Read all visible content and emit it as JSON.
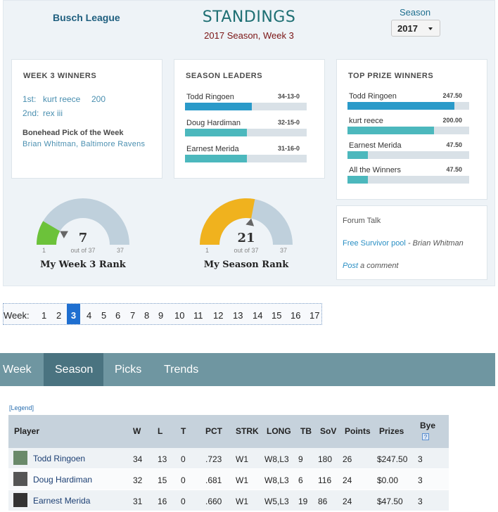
{
  "header": {
    "league_name": "Busch League",
    "title": "STANDINGS",
    "subtitle": "2017 Season, Week 3",
    "season_label": "Season",
    "season_value": "2017"
  },
  "week_winners": {
    "title": "WEEK 3 WINNERS",
    "rows": [
      {
        "place": "1st:",
        "name": "kurt reece",
        "score": "200"
      },
      {
        "place": "2nd:",
        "name": "rex iii",
        "score": ""
      }
    ],
    "bonehead_title": "Bonehead Pick of the Week",
    "bonehead_text": "Brian Whitman, Baltimore Ravens"
  },
  "season_leaders": {
    "title": "SEASON LEADERS",
    "items": [
      {
        "name": "Todd Ringoen",
        "value": "34-13-0",
        "fraction": 0.55,
        "color": "#2a9ac9"
      },
      {
        "name": "Doug Hardiman",
        "value": "32-15-0",
        "fraction": 0.51,
        "color": "#4cb8bd"
      },
      {
        "name": "Earnest Merida",
        "value": "31-16-0",
        "fraction": 0.51,
        "color": "#4cb8bd"
      }
    ]
  },
  "top_prize": {
    "title": "TOP PRIZE WINNERS",
    "items": [
      {
        "name": "Todd Ringoen",
        "value": "247.50",
        "fraction": 0.88,
        "color": "#2a9ac9"
      },
      {
        "name": "kurt reece",
        "value": "200.00",
        "fraction": 0.71,
        "color": "#4cb8bd"
      },
      {
        "name": "Earnest Merida",
        "value": "47.50",
        "fraction": 0.17,
        "color": "#4cb8bd"
      },
      {
        "name": "All the Winners",
        "value": "47.50",
        "fraction": 0.17,
        "color": "#4cb8bd"
      }
    ]
  },
  "gauges": [
    {
      "value": "7",
      "min": "1",
      "max": "37",
      "out_of": "out of 37",
      "title": "My Week 3 Rank",
      "fraction": 0.17,
      "color": "#6cc23a"
    },
    {
      "value": "21",
      "min": "1",
      "max": "37",
      "out_of": "out of 37",
      "title": "My Season Rank",
      "fraction": 0.56,
      "color": "#f0b21e"
    }
  ],
  "forum": {
    "title": "Forum Talk",
    "post_link": "Free Survivor pool",
    "post_author": "- Brian Whitman",
    "comment_link": "Post",
    "comment_text": "a comment"
  },
  "weeks": {
    "label": "Week:",
    "active": "3",
    "numbers": [
      "1",
      "2",
      "3",
      "4",
      "5",
      "6",
      "7",
      "8",
      "9",
      "10",
      "11",
      "12",
      "13",
      "14",
      "15",
      "16",
      "17"
    ]
  },
  "tabs": [
    "Week",
    "Season",
    "Picks",
    "Trends"
  ],
  "active_tab": "Season",
  "legend": "[Legend]",
  "table": {
    "headers": [
      "Player",
      "W",
      "L",
      "T",
      "PCT",
      "STRK",
      "LONG",
      "TB",
      "SoV",
      "Points",
      "Prizes",
      "Bye"
    ],
    "rows": [
      [
        "Todd Ringoen",
        "34",
        "13",
        "0",
        ".723",
        "W1",
        "W8,L3",
        "9",
        "180",
        "26",
        "$247.50",
        "3"
      ],
      [
        "Doug Hardiman",
        "32",
        "15",
        "0",
        ".681",
        "W1",
        "W8,L3",
        "6",
        "116",
        "24",
        "$0.00",
        "3"
      ],
      [
        "Earnest Merida",
        "31",
        "16",
        "0",
        ".660",
        "W1",
        "W5,L3",
        "19",
        "86",
        "24",
        "$47.50",
        "3"
      ]
    ]
  }
}
